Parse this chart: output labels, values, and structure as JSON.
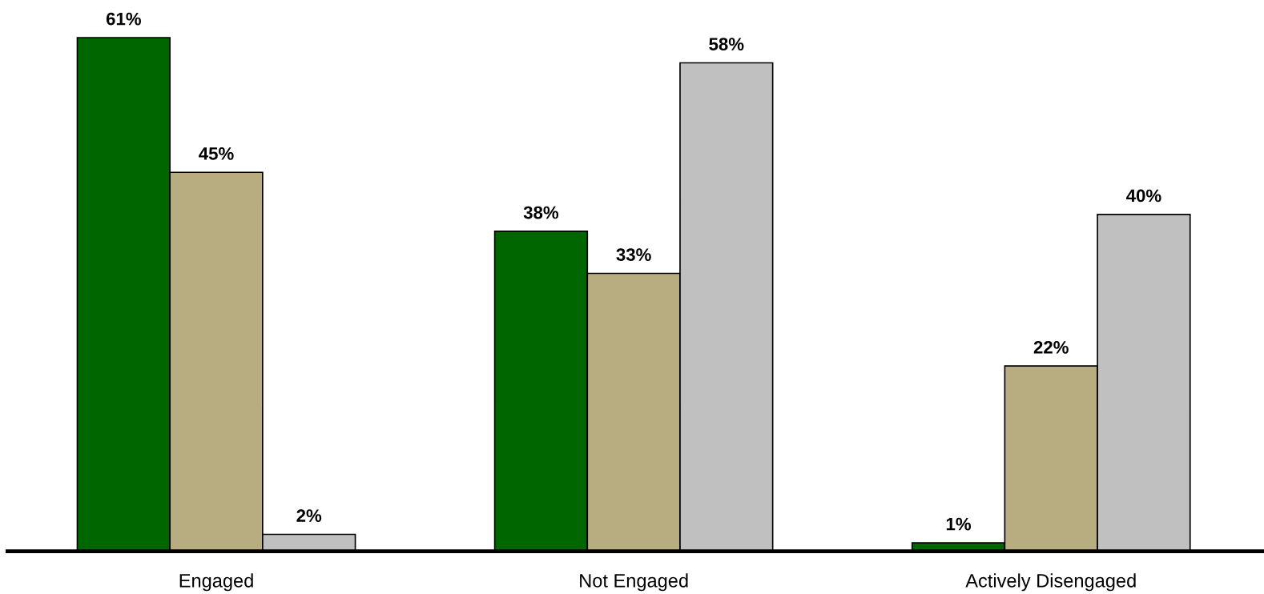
{
  "chart_data": {
    "type": "bar",
    "categories": [
      "Engaged",
      "Not Engaged",
      "Actively Disengaged"
    ],
    "series": [
      {
        "color": "#006600",
        "values": [
          61,
          38,
          1
        ],
        "value_labels": [
          "61%",
          "38%",
          "1%"
        ]
      },
      {
        "color": "#b8ad80",
        "values": [
          45,
          33,
          22
        ],
        "value_labels": [
          "45%",
          "33%",
          "22%"
        ]
      },
      {
        "color": "#c0c0c0",
        "values": [
          2,
          58,
          40
        ],
        "value_labels": [
          "2%",
          "58%",
          "40%"
        ]
      }
    ],
    "grid": false,
    "legend": false
  }
}
